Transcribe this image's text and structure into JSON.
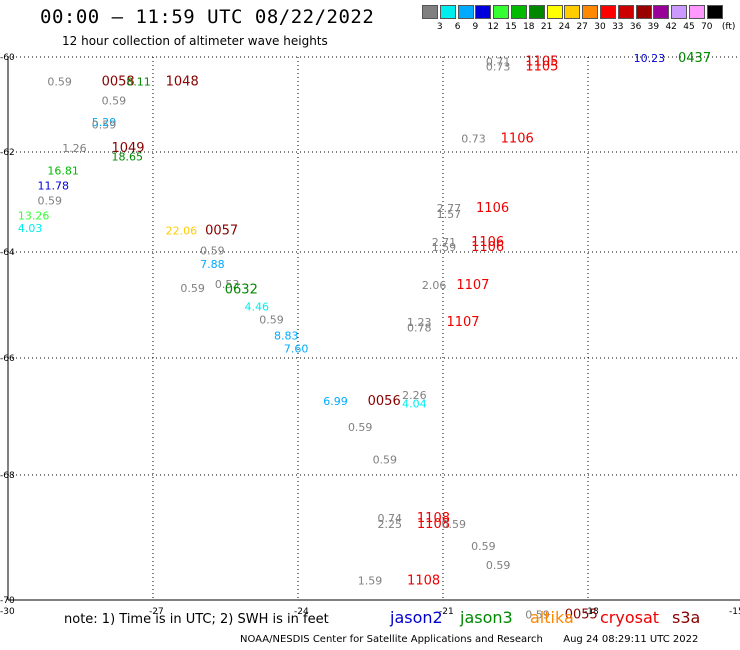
{
  "header": {
    "title": "00:00 — 11:59 UTC 08/22/2022",
    "subtitle": "12 hour collection of altimeter wave heights"
  },
  "legend": {
    "colors": [
      "#808080",
      "#00eeee",
      "#00aaff",
      "#0000dd",
      "#33ff33",
      "#00bb00",
      "#008800",
      "#ffff00",
      "#ffcc00",
      "#ff8800",
      "#ff0000",
      "#cc0000",
      "#990000",
      "#990099",
      "#cc99ff",
      "#ff99ff",
      "#000000"
    ],
    "ticks": [
      "3",
      "6",
      "9",
      "12",
      "15",
      "18",
      "21",
      "24",
      "27",
      "30",
      "33",
      "36",
      "39",
      "42",
      "45",
      "70",
      "(ft)"
    ]
  },
  "map": {
    "lon_range": [
      -30,
      -15
    ],
    "lat_range": [
      -70,
      -60
    ],
    "lon_ticks": [
      "-30",
      "-27",
      "-24",
      "-21",
      "-18",
      "-15"
    ],
    "lat_ticks": [
      "-60",
      "-62",
      "-64",
      "-66",
      "-68",
      "-70"
    ],
    "labels": [
      {
        "t": "0.59",
        "c": "#808080",
        "lon": -29.2,
        "lat": -60.6
      },
      {
        "t": "0058",
        "c": "#880000",
        "lon": -28.1,
        "lat": -60.6,
        "big": true
      },
      {
        "t": "8.11",
        "c": "#008800",
        "lon": -27.6,
        "lat": -60.6
      },
      {
        "t": "1048",
        "c": "#880000",
        "lon": -26.8,
        "lat": -60.6,
        "big": true
      },
      {
        "t": "0.59",
        "c": "#808080",
        "lon": -28.1,
        "lat": -61.0
      },
      {
        "t": "5.29",
        "c": "#00aaff",
        "lon": -28.3,
        "lat": -61.45
      },
      {
        "t": "0.59",
        "c": "#808080",
        "lon": -28.3,
        "lat": -61.5
      },
      {
        "t": "1.26",
        "c": "#808080",
        "lon": -28.9,
        "lat": -62.0
      },
      {
        "t": "1049",
        "c": "#880000",
        "lon": -27.9,
        "lat": -62.0,
        "big": true
      },
      {
        "t": "18.65",
        "c": "#008800",
        "lon": -27.9,
        "lat": -62.17
      },
      {
        "t": "16.81",
        "c": "#00bb00",
        "lon": -29.2,
        "lat": -62.45
      },
      {
        "t": "11.78",
        "c": "#0000dd",
        "lon": -29.4,
        "lat": -62.75
      },
      {
        "t": "0.59",
        "c": "#808080",
        "lon": -29.4,
        "lat": -63.05
      },
      {
        "t": "13.26",
        "c": "#33ff33",
        "lon": -29.8,
        "lat": -63.35
      },
      {
        "t": "4.03",
        "c": "#00eeee",
        "lon": -29.8,
        "lat": -63.6
      },
      {
        "t": "22.06",
        "c": "#ffcc00",
        "lon": -26.8,
        "lat": -63.65
      },
      {
        "t": "0057",
        "c": "#880000",
        "lon": -26.0,
        "lat": -63.65,
        "big": true
      },
      {
        "t": "0.59",
        "c": "#808080",
        "lon": -26.1,
        "lat": -64.05
      },
      {
        "t": "7.88",
        "c": "#00aaff",
        "lon": -26.1,
        "lat": -64.3
      },
      {
        "t": "0.59",
        "c": "#808080",
        "lon": -26.5,
        "lat": -64.75
      },
      {
        "t": "0.53",
        "c": "#808080",
        "lon": -25.8,
        "lat": -64.68
      },
      {
        "t": "0632",
        "c": "#008800",
        "lon": -25.6,
        "lat": -64.78,
        "big": true
      },
      {
        "t": "4.46",
        "c": "#00eeee",
        "lon": -25.2,
        "lat": -65.1
      },
      {
        "t": "0.59",
        "c": "#808080",
        "lon": -24.9,
        "lat": -65.35
      },
      {
        "t": "8.83",
        "c": "#00aaff",
        "lon": -24.6,
        "lat": -65.65
      },
      {
        "t": "7.60",
        "c": "#00aaff",
        "lon": -24.4,
        "lat": -65.9
      },
      {
        "t": "6.99",
        "c": "#00aaff",
        "lon": -23.6,
        "lat": -66.8
      },
      {
        "t": "0056",
        "c": "#880000",
        "lon": -22.7,
        "lat": -66.8,
        "big": true
      },
      {
        "t": "2.26",
        "c": "#808080",
        "lon": -22.0,
        "lat": -66.7
      },
      {
        "t": "4.04",
        "c": "#00eeee",
        "lon": -22.0,
        "lat": -66.85
      },
      {
        "t": "0.59",
        "c": "#808080",
        "lon": -23.1,
        "lat": -67.25
      },
      {
        "t": "0.59",
        "c": "#808080",
        "lon": -22.6,
        "lat": -67.8
      },
      {
        "t": "0.74",
        "c": "#808080",
        "lon": -22.5,
        "lat": -68.75
      },
      {
        "t": "2.25",
        "c": "#808080",
        "lon": -22.5,
        "lat": -68.85
      },
      {
        "t": "1108",
        "c": "#ee0000",
        "lon": -21.7,
        "lat": -68.75,
        "big": true
      },
      {
        "t": "1108",
        "c": "#ee0000",
        "lon": -21.7,
        "lat": -68.85,
        "big": true
      },
      {
        "t": "0.59",
        "c": "#808080",
        "lon": -21.2,
        "lat": -68.85
      },
      {
        "t": "0.59",
        "c": "#808080",
        "lon": -20.6,
        "lat": -69.2
      },
      {
        "t": "0.59",
        "c": "#808080",
        "lon": -20.3,
        "lat": -69.5
      },
      {
        "t": "1.59",
        "c": "#808080",
        "lon": -22.9,
        "lat": -69.75
      },
      {
        "t": "1108",
        "c": "#ee0000",
        "lon": -21.9,
        "lat": -69.75,
        "big": true
      },
      {
        "t": "0.59",
        "c": "#808080",
        "lon": -19.5,
        "lat": -70.3
      },
      {
        "t": "0055",
        "c": "#880000",
        "lon": -18.7,
        "lat": -70.3,
        "big": true
      },
      {
        "t": "0.71",
        "c": "#808080",
        "lon": -20.3,
        "lat": -60.18
      },
      {
        "t": "0.73",
        "c": "#808080",
        "lon": -20.3,
        "lat": -60.28
      },
      {
        "t": "1105",
        "c": "#ee0000",
        "lon": -19.5,
        "lat": -60.18,
        "big": true
      },
      {
        "t": "1105",
        "c": "#ee0000",
        "lon": -19.5,
        "lat": -60.28,
        "big": true
      },
      {
        "t": "10.23",
        "c": "#0000dd",
        "lon": -17.3,
        "lat": -60.1
      },
      {
        "t": "0437",
        "c": "#008800",
        "lon": -16.4,
        "lat": -60.1,
        "big": true
      },
      {
        "t": "0.73",
        "c": "#808080",
        "lon": -20.8,
        "lat": -61.8
      },
      {
        "t": "1106",
        "c": "#ee0000",
        "lon": -20.0,
        "lat": -61.8,
        "big": true
      },
      {
        "t": "2.77",
        "c": "#808080",
        "lon": -21.3,
        "lat": -63.2
      },
      {
        "t": "1.57",
        "c": "#808080",
        "lon": -21.3,
        "lat": -63.32
      },
      {
        "t": "1106",
        "c": "#ee0000",
        "lon": -20.5,
        "lat": -63.2,
        "big": true
      },
      {
        "t": "2.71",
        "c": "#808080",
        "lon": -21.4,
        "lat": -63.88
      },
      {
        "t": "1.59",
        "c": "#808080",
        "lon": -21.4,
        "lat": -63.98
      },
      {
        "t": "1106",
        "c": "#ee0000",
        "lon": -20.6,
        "lat": -63.88,
        "big": true
      },
      {
        "t": "1106",
        "c": "#ee0000",
        "lon": -20.6,
        "lat": -63.98,
        "big": true
      },
      {
        "t": "2.06",
        "c": "#808080",
        "lon": -21.6,
        "lat": -64.7
      },
      {
        "t": "1107",
        "c": "#ee0000",
        "lon": -20.9,
        "lat": -64.7,
        "big": true
      },
      {
        "t": "1.23",
        "c": "#808080",
        "lon": -21.9,
        "lat": -65.4
      },
      {
        "t": "0.78",
        "c": "#808080",
        "lon": -21.9,
        "lat": -65.5
      },
      {
        "t": "1107",
        "c": "#ee0000",
        "lon": -21.1,
        "lat": -65.4,
        "big": true
      }
    ]
  },
  "footer": {
    "note": "note: 1) Time is in UTC; 2) SWH is in feet",
    "satellites": [
      {
        "name": "jason2",
        "color": "#0000cc"
      },
      {
        "name": "jason3",
        "color": "#008800"
      },
      {
        "name": "altika",
        "color": "#ff8800"
      },
      {
        "name": "cryosat",
        "color": "#ee0000"
      },
      {
        "name": "s3a",
        "color": "#880000"
      }
    ],
    "credit": "NOAA/NESDIS Center for Satellite Applications and Research",
    "timestamp": "Aug 24 08:29:11 UTC 2022"
  }
}
